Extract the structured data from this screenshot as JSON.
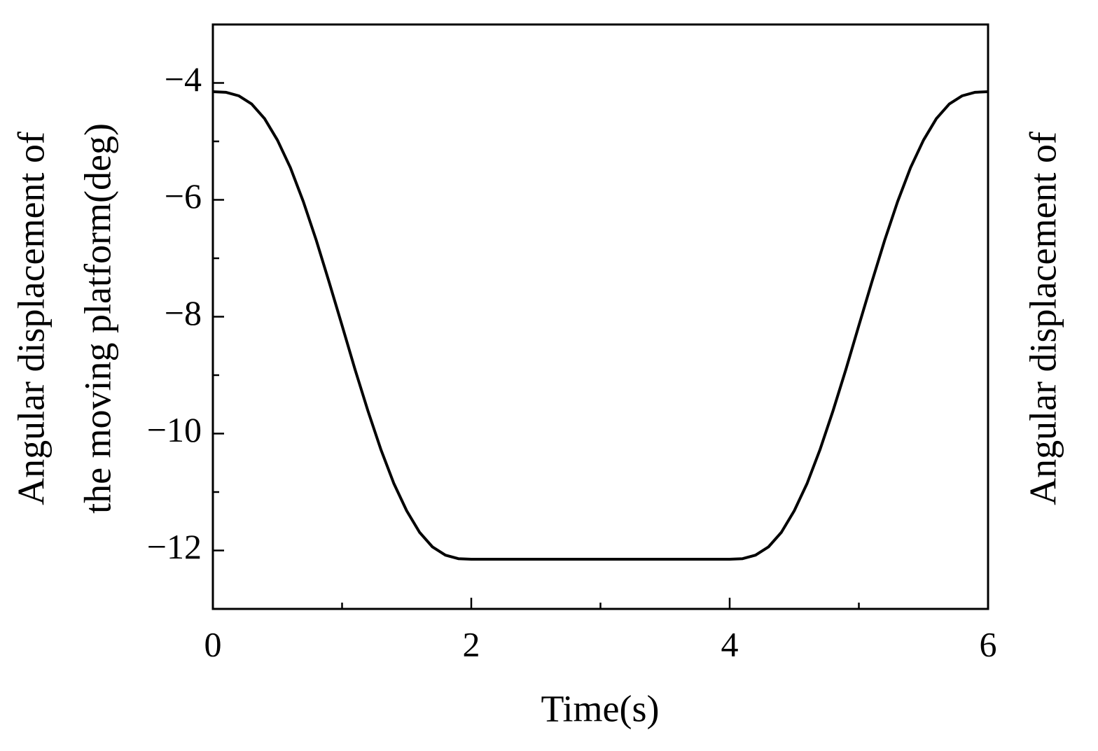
{
  "chart_data": {
    "type": "line",
    "xlabel": "Time(s)",
    "ylabel": [
      "Angular displacement of",
      "the moving platform(deg)"
    ],
    "y2label": "Angular displacement of",
    "x": [
      0,
      0.1,
      0.2,
      0.3,
      0.4,
      0.5,
      0.6,
      0.7,
      0.8,
      0.9,
      1,
      1.1,
      1.2,
      1.3,
      1.4,
      1.5,
      1.6,
      1.7,
      1.8,
      1.9,
      2,
      2.1,
      2.2,
      2.3,
      2.4,
      2.5,
      2.6,
      2.7,
      2.8,
      2.9,
      3,
      3.1,
      3.2,
      3.3,
      3.4,
      3.5,
      3.6,
      3.7,
      3.8,
      3.9,
      4,
      4.1,
      4.2,
      4.3,
      4.4,
      4.5,
      4.6,
      4.7,
      4.8,
      4.9,
      5,
      5.1,
      5.2,
      5.3,
      5.4,
      5.5,
      5.6,
      5.7,
      5.8,
      5.9,
      6
    ],
    "series": [
      {
        "color": "#000000",
        "values": [
          -4.15,
          -4.16,
          -4.22,
          -4.36,
          -4.61,
          -4.98,
          -5.45,
          -6.03,
          -6.69,
          -7.41,
          -8.15,
          -8.9,
          -9.61,
          -10.27,
          -10.85,
          -11.32,
          -11.69,
          -11.94,
          -12.08,
          -12.14,
          -12.15,
          -12.15,
          -12.15,
          -12.15,
          -12.15,
          -12.15,
          -12.15,
          -12.15,
          -12.15,
          -12.15,
          -12.15,
          -12.15,
          -12.15,
          -12.15,
          -12.15,
          -12.15,
          -12.15,
          -12.15,
          -12.15,
          -12.15,
          -12.15,
          -12.14,
          -12.08,
          -11.94,
          -11.69,
          -11.32,
          -10.85,
          -10.27,
          -9.61,
          -8.9,
          -8.15,
          -7.41,
          -6.69,
          -6.03,
          -5.45,
          -4.98,
          -4.61,
          -4.36,
          -4.22,
          -4.16,
          -4.15
        ]
      }
    ],
    "xlim": [
      0,
      6
    ],
    "xticks": [
      0,
      2,
      4,
      6
    ],
    "xminorticks": [
      1,
      3,
      5
    ],
    "ylim": [
      -13,
      -3
    ],
    "yticks": [
      {
        "value": -4,
        "label": "−4"
      },
      {
        "value": -6,
        "label": "−6"
      },
      {
        "value": -8,
        "label": "−8"
      },
      {
        "value": -10,
        "label": "−10"
      },
      {
        "value": -12,
        "label": "−12"
      }
    ],
    "yminorticks": [
      -11,
      -9,
      -7,
      -5
    ],
    "grid": false
  }
}
